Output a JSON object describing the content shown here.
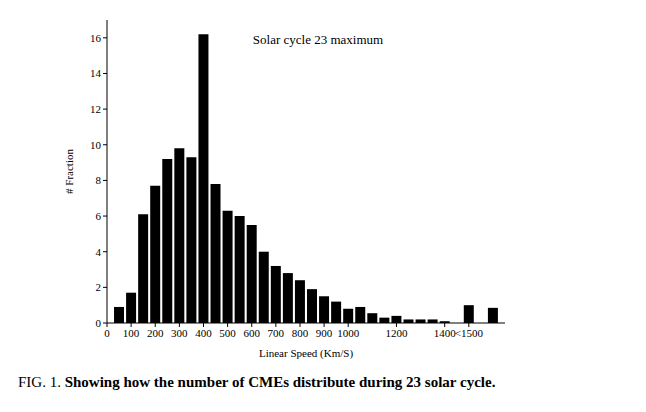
{
  "chart_data": {
    "type": "histogram",
    "title": "Solar cycle 23 maximum",
    "caption": "FIG. 1. Showing how the number of CMEs distribute during 23 solar cycle.",
    "x_label": "Linear Speed (Km/S)",
    "y_label": "# Fraction",
    "bins": [
      25,
      75,
      125,
      175,
      225,
      275,
      325,
      375,
      425,
      475,
      525,
      575,
      625,
      675,
      725,
      775,
      825,
      875,
      925,
      975,
      1025,
      1075,
      1125,
      1175,
      1225,
      1275,
      1325,
      1375,
      1425,
      1475,
      1525,
      1575,
      1625
    ],
    "values": [
      0.9,
      1.7,
      6.1,
      7.7,
      9.2,
      9.8,
      9.3,
      16.2,
      7.8,
      6.3,
      6.0,
      5.5,
      4.0,
      3.2,
      2.8,
      2.4,
      1.9,
      1.5,
      1.2,
      0.8,
      0.9,
      0.55,
      0.3,
      0.4,
      0.2,
      0.2,
      0.2,
      0.1,
      0,
      1.0,
      0,
      0.85
    ],
    "color": "#000000",
    "xlim": [
      0,
      1650
    ],
    "xticks": [
      0,
      100,
      200,
      300,
      400,
      500,
      600,
      700,
      800,
      900,
      1000,
      1200,
      1400,
      {
        "value": 1500,
        "label": "<1500"
      }
    ],
    "ylim": [
      0,
      17
    ],
    "yticks": [
      0,
      2,
      4,
      6,
      8,
      10,
      12,
      14,
      16
    ],
    "grid": false
  }
}
